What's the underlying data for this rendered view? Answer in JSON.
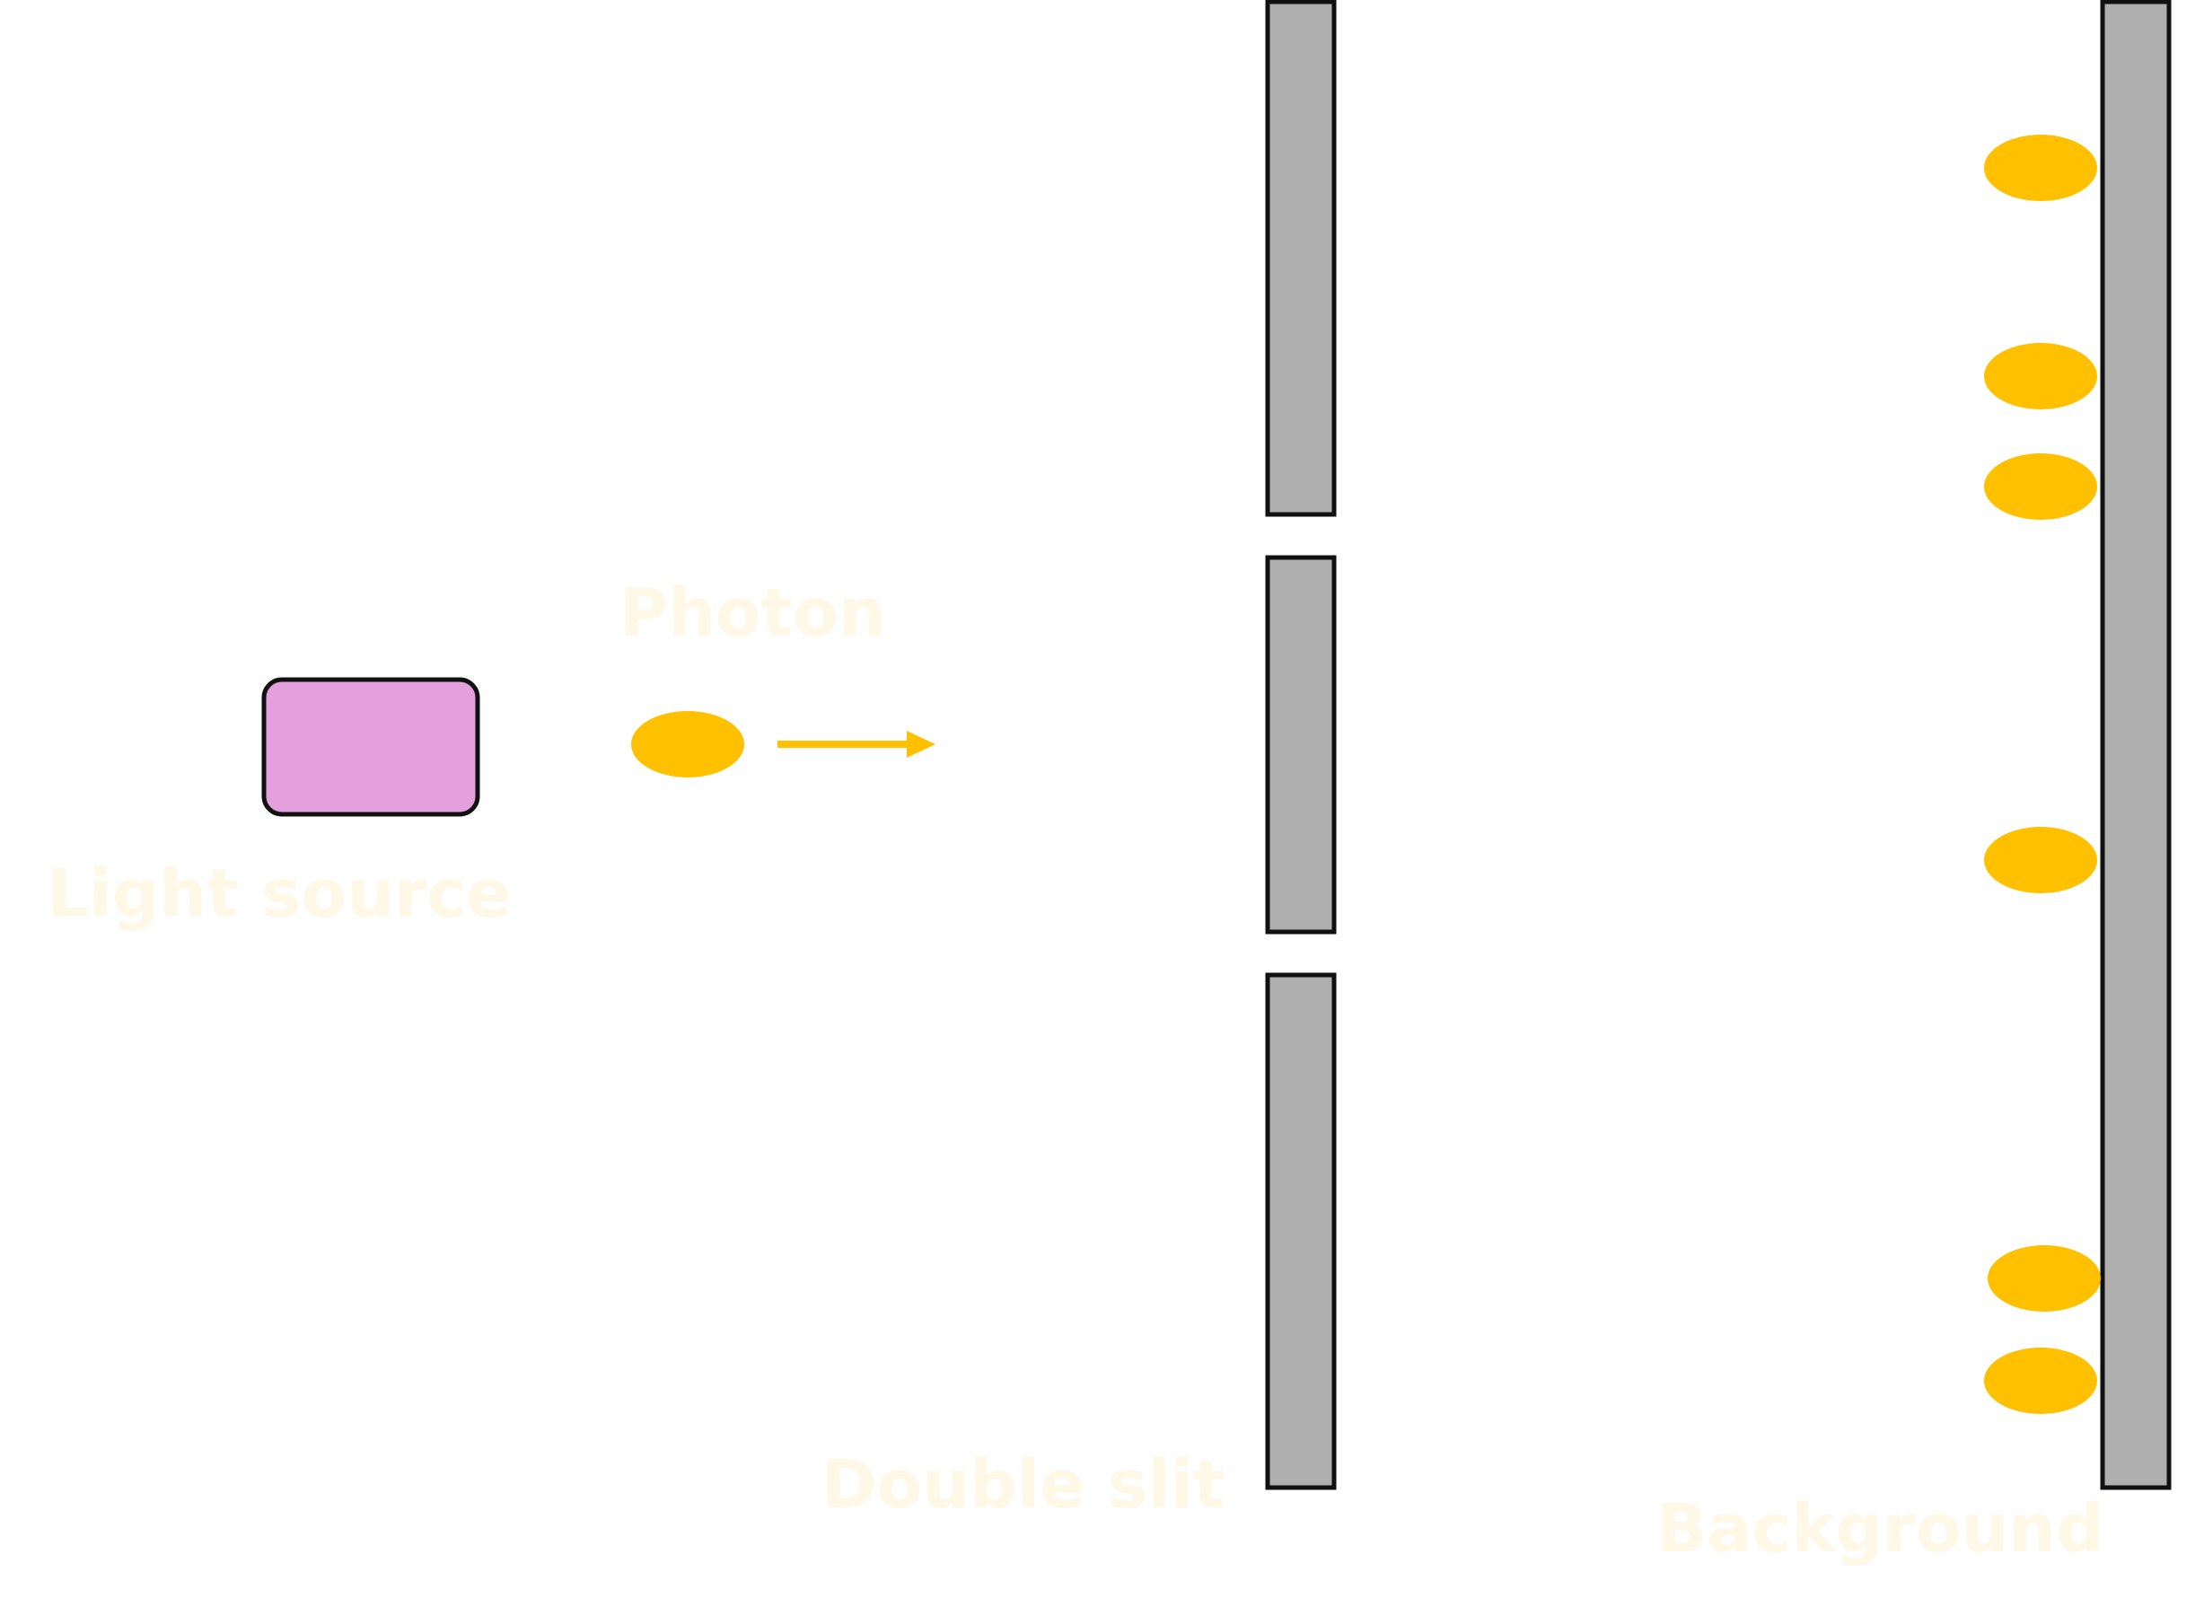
{
  "labels": {
    "light_source": "Light source",
    "photon": "Photon",
    "double_slit": "Double slit",
    "background": "Background"
  },
  "colors": {
    "light_source_fill": "#e3a0dc",
    "photon": "#ffc000",
    "barrier_fill": "#afafaf",
    "outline": "#111111",
    "label_text": "#fff8e6"
  }
}
